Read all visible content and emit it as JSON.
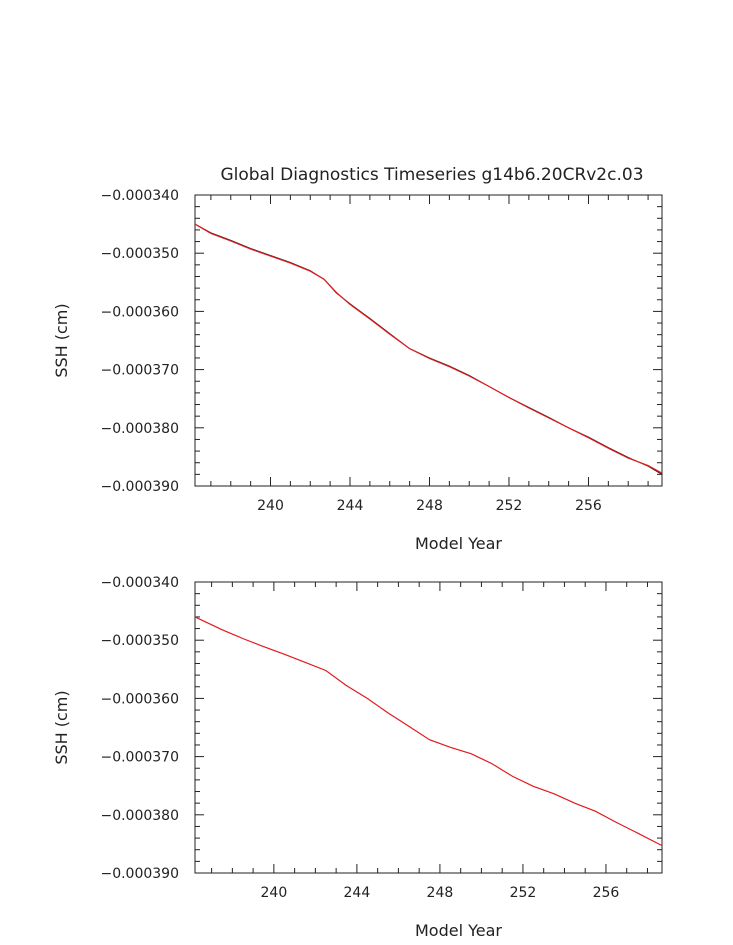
{
  "page_title": "Global Diagnostics Timeseries g14b6.20CRv2c.03",
  "chart_data": [
    {
      "type": "line",
      "title": "Global Diagnostics Timeseries g14b6.20CRv2c.03",
      "xlabel": "Model Year",
      "ylabel": "SSH (cm)",
      "xlim": [
        236.2,
        259.7
      ],
      "ylim": [
        -0.00039,
        -0.00034
      ],
      "xticks": [
        240,
        244,
        248,
        252,
        256
      ],
      "xtick_labels": [
        "240",
        "244",
        "248",
        "252",
        "256"
      ],
      "yticks": [
        -0.00034,
        -0.00035,
        -0.00036,
        -0.00037,
        -0.00038,
        -0.00039
      ],
      "ytick_labels": [
        "−0.000340",
        "−0.000350",
        "−0.000360",
        "−0.000370",
        "−0.000380",
        "−0.000390"
      ],
      "grid": false,
      "series": [
        {
          "color": "#222222",
          "x": [
            236.2,
            237.0,
            238.0,
            239.0,
            240.0,
            241.0,
            242.0,
            242.7,
            243.3,
            244.0,
            245.0,
            246.0,
            247.0,
            248.0,
            249.0,
            250.0,
            251.0,
            252.0,
            253.0,
            254.0,
            255.0,
            256.0,
            257.0,
            258.0,
            259.0,
            259.7
          ],
          "y": [
            -0.000345,
            -0.0003465,
            -0.0003478,
            -0.0003492,
            -0.0003504,
            -0.0003516,
            -0.000353,
            -0.0003545,
            -0.0003568,
            -0.0003587,
            -0.0003612,
            -0.0003638,
            -0.0003664,
            -0.000368,
            -0.0003694,
            -0.000371,
            -0.0003729,
            -0.0003748,
            -0.0003765,
            -0.0003782,
            -0.00038,
            -0.0003816,
            -0.0003834,
            -0.0003851,
            -0.0003866,
            -0.000388
          ]
        },
        {
          "color": "#e31a1c",
          "x": [
            236.2,
            237.0,
            238.0,
            239.0,
            240.0,
            241.0,
            242.0,
            242.7,
            243.3,
            244.0,
            245.0,
            246.0,
            247.0,
            248.0,
            249.0,
            250.0,
            251.0,
            252.0,
            253.0,
            254.0,
            255.0,
            256.0,
            257.0,
            258.0,
            259.0,
            259.7
          ],
          "y": [
            -0.000345,
            -0.0003466,
            -0.0003479,
            -0.0003493,
            -0.0003505,
            -0.0003517,
            -0.0003531,
            -0.0003545,
            -0.0003567,
            -0.0003588,
            -0.0003613,
            -0.0003639,
            -0.0003664,
            -0.0003681,
            -0.0003695,
            -0.0003711,
            -0.0003729,
            -0.0003748,
            -0.0003766,
            -0.0003783,
            -0.00038,
            -0.0003817,
            -0.0003835,
            -0.0003852,
            -0.0003865,
            -0.0003878
          ]
        }
      ]
    },
    {
      "type": "line",
      "title": "",
      "xlabel": "Model Year",
      "ylabel": "SSH (cm)",
      "xlim": [
        236.2,
        258.7
      ],
      "ylim": [
        -0.00039,
        -0.00034
      ],
      "xticks": [
        240,
        244,
        248,
        252,
        256
      ],
      "xtick_labels": [
        "240",
        "244",
        "248",
        "252",
        "256"
      ],
      "yticks": [
        -0.00034,
        -0.00035,
        -0.00036,
        -0.00037,
        -0.00038,
        -0.00039
      ],
      "ytick_labels": [
        "−0.000340",
        "−0.000350",
        "−0.000360",
        "−0.000370",
        "−0.000380",
        "−0.000390"
      ],
      "grid": false,
      "series": [
        {
          "color": "#e31a1c",
          "x": [
            236.2,
            237.5,
            238.5,
            239.5,
            240.5,
            241.5,
            242.5,
            243.5,
            244.5,
            245.5,
            246.5,
            247.5,
            248.5,
            249.5,
            250.5,
            251.5,
            252.5,
            253.5,
            254.5,
            255.5,
            256.5,
            257.5,
            258.7
          ],
          "y": [
            -0.000346,
            -0.0003482,
            -0.0003497,
            -0.0003511,
            -0.0003524,
            -0.0003538,
            -0.0003552,
            -0.0003578,
            -0.00036,
            -0.0003625,
            -0.0003648,
            -0.0003671,
            -0.0003684,
            -0.0003695,
            -0.0003712,
            -0.0003734,
            -0.0003751,
            -0.0003764,
            -0.000378,
            -0.0003794,
            -0.0003813,
            -0.0003831,
            -0.0003853
          ]
        }
      ]
    }
  ]
}
